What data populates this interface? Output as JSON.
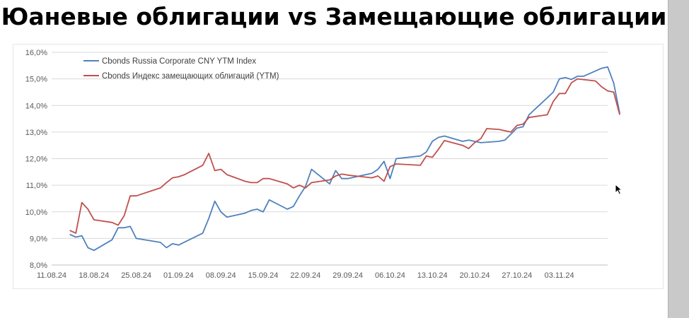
{
  "page": {
    "title": "Юаневые облигации vs Замещающие облигации"
  },
  "chart_data": {
    "type": "line",
    "title": "",
    "xlabel": "",
    "ylabel": "",
    "ylim": [
      8.0,
      16.0
    ],
    "y_ticks": [
      "8,0%",
      "9,0%",
      "10,0%",
      "11,0%",
      "12,0%",
      "13,0%",
      "14,0%",
      "15,0%",
      "16,0%"
    ],
    "x_ticks": [
      "11.08.24",
      "18.08.24",
      "25.08.24",
      "01.09.24",
      "08.09.24",
      "15.09.24",
      "22.09.24",
      "29.09.24",
      "06.10.24",
      "13.10.24",
      "20.10.24",
      "27.10.24",
      "03.11.24"
    ],
    "x_unit": "days from 11.08.24",
    "grid": "horizontal",
    "legend_position": "top-left",
    "series": [
      {
        "name": "Cbonds Russia Corporate CNY YTM Index",
        "color": "#4f81bd",
        "points": [
          [
            3,
            9.15
          ],
          [
            4,
            9.05
          ],
          [
            5,
            9.1
          ],
          [
            6,
            8.65
          ],
          [
            7,
            8.55
          ],
          [
            10,
            8.95
          ],
          [
            11,
            9.4
          ],
          [
            12,
            9.4
          ],
          [
            13,
            9.45
          ],
          [
            14,
            9.0
          ],
          [
            18,
            8.85
          ],
          [
            19,
            8.65
          ],
          [
            20,
            8.8
          ],
          [
            21,
            8.75
          ],
          [
            25,
            9.2
          ],
          [
            26,
            9.75
          ],
          [
            27,
            10.4
          ],
          [
            28,
            10.0
          ],
          [
            29,
            9.8
          ],
          [
            32,
            9.95
          ],
          [
            33,
            10.05
          ],
          [
            34,
            10.1
          ],
          [
            35,
            10.0
          ],
          [
            36,
            10.45
          ],
          [
            39,
            10.1
          ],
          [
            40,
            10.2
          ],
          [
            41,
            10.6
          ],
          [
            42,
            10.95
          ],
          [
            43,
            11.6
          ],
          [
            46,
            11.05
          ],
          [
            47,
            11.55
          ],
          [
            48,
            11.25
          ],
          [
            49,
            11.25
          ],
          [
            53,
            11.45
          ],
          [
            54,
            11.6
          ],
          [
            55,
            11.9
          ],
          [
            56,
            11.25
          ],
          [
            57,
            12.0
          ],
          [
            61,
            12.1
          ],
          [
            62,
            12.25
          ],
          [
            63,
            12.65
          ],
          [
            64,
            12.8
          ],
          [
            65,
            12.85
          ],
          [
            68,
            12.65
          ],
          [
            69,
            12.7
          ],
          [
            70,
            12.65
          ],
          [
            71,
            12.6
          ],
          [
            74,
            12.65
          ],
          [
            75,
            12.7
          ],
          [
            77,
            13.15
          ],
          [
            78,
            13.2
          ],
          [
            79,
            13.65
          ],
          [
            83,
            14.5
          ],
          [
            84,
            15.0
          ],
          [
            85,
            15.05
          ],
          [
            86,
            14.98
          ],
          [
            87,
            15.1
          ],
          [
            88,
            15.1
          ],
          [
            91,
            15.4
          ],
          [
            92,
            15.45
          ],
          [
            93,
            14.85
          ],
          [
            94,
            13.7
          ]
        ]
      },
      {
        "name": "Cbonds Индекс замещающих облигаций (YTM)",
        "color": "#c0504d",
        "points": [
          [
            3,
            9.3
          ],
          [
            4,
            9.2
          ],
          [
            5,
            10.35
          ],
          [
            6,
            10.1
          ],
          [
            7,
            9.7
          ],
          [
            10,
            9.6
          ],
          [
            11,
            9.5
          ],
          [
            12,
            9.85
          ],
          [
            13,
            10.6
          ],
          [
            14,
            10.6
          ],
          [
            18,
            10.9
          ],
          [
            19,
            11.1
          ],
          [
            20,
            11.28
          ],
          [
            21,
            11.32
          ],
          [
            22,
            11.4
          ],
          [
            25,
            11.75
          ],
          [
            26,
            12.2
          ],
          [
            27,
            11.55
          ],
          [
            28,
            11.6
          ],
          [
            29,
            11.4
          ],
          [
            32,
            11.15
          ],
          [
            33,
            11.1
          ],
          [
            34,
            11.1
          ],
          [
            35,
            11.25
          ],
          [
            36,
            11.25
          ],
          [
            39,
            11.05
          ],
          [
            40,
            10.9
          ],
          [
            41,
            11.0
          ],
          [
            42,
            10.9
          ],
          [
            43,
            11.1
          ],
          [
            46,
            11.2
          ],
          [
            47,
            11.35
          ],
          [
            48,
            11.42
          ],
          [
            49,
            11.38
          ],
          [
            53,
            11.28
          ],
          [
            54,
            11.35
          ],
          [
            55,
            11.15
          ],
          [
            56,
            11.7
          ],
          [
            57,
            11.8
          ],
          [
            61,
            11.75
          ],
          [
            62,
            12.1
          ],
          [
            63,
            12.05
          ],
          [
            64,
            12.35
          ],
          [
            65,
            12.68
          ],
          [
            68,
            12.5
          ],
          [
            69,
            12.38
          ],
          [
            70,
            12.6
          ],
          [
            71,
            12.75
          ],
          [
            72,
            13.13
          ],
          [
            74,
            13.1
          ],
          [
            75,
            13.05
          ],
          [
            76,
            13.0
          ],
          [
            77,
            13.25
          ],
          [
            78,
            13.3
          ],
          [
            79,
            13.55
          ],
          [
            82,
            13.65
          ],
          [
            83,
            14.15
          ],
          [
            84,
            14.45
          ],
          [
            85,
            14.45
          ],
          [
            86,
            14.85
          ],
          [
            87,
            15.0
          ],
          [
            90,
            14.92
          ],
          [
            91,
            14.7
          ],
          [
            92,
            14.55
          ],
          [
            93,
            14.5
          ],
          [
            94,
            13.65
          ]
        ]
      }
    ]
  }
}
